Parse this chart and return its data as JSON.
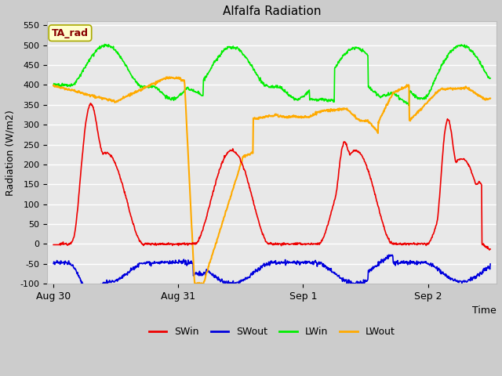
{
  "title": "Alfalfa Radiation",
  "ylabel": "Radiation (W/m2)",
  "xlabel": "Time",
  "annotation": "TA_rad",
  "ylim": [
    -100,
    560
  ],
  "yticks": [
    -100,
    -50,
    0,
    50,
    100,
    150,
    200,
    250,
    300,
    350,
    400,
    450,
    500,
    550
  ],
  "xtick_positions": [
    0.0,
    1.0,
    2.0,
    3.0
  ],
  "xtick_labels": [
    "Aug 30",
    "Aug 31",
    "Sep 1",
    "Sep 2"
  ],
  "xlim": [
    -0.05,
    3.55
  ],
  "colors": {
    "SWin": "#ee0000",
    "SWout": "#0000dd",
    "LWin": "#00ee00",
    "LWout": "#ffaa00"
  },
  "fig_bg": "#cccccc",
  "plot_bg": "#e8e8e8",
  "grid_color": "#ffffff",
  "annotation_box_color": "#ffffcc",
  "annotation_text_color": "#880000",
  "annotation_edge_color": "#aaaa00"
}
